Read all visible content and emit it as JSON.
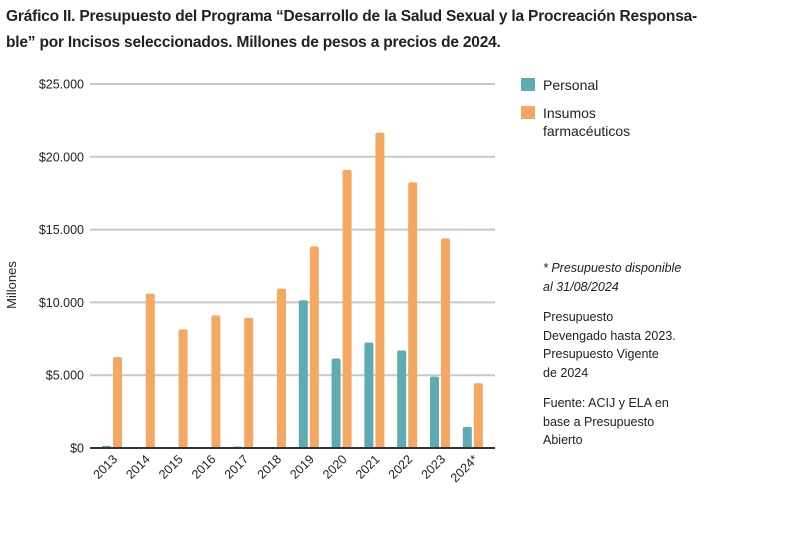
{
  "chart_data": {
    "type": "bar",
    "title": "Gráfico II. Presupuesto del Programa “Desarrollo de la Salud Sexual y la Procreación Responsa-",
    "title_line2": "ble” por Incisos seleccionados. Millones de pesos a precios de 2024.",
    "xlabel": "",
    "ylabel": "Millones",
    "categories": [
      "2013",
      "2014",
      "2015",
      "2016",
      "2017",
      "2018",
      "2019",
      "2020",
      "2021",
      "2022",
      "2023",
      "2024*"
    ],
    "series": [
      {
        "name": "Personal",
        "color": "#5fabb4",
        "values": [
          150,
          0,
          0,
          0,
          100,
          0,
          10150,
          6150,
          7250,
          6700,
          4900,
          1450
        ]
      },
      {
        "name": "Insumos farmacéuticos",
        "color": "#f4a862",
        "values": [
          6250,
          10600,
          8150,
          9100,
          8950,
          10950,
          13850,
          19100,
          21650,
          18250,
          14400,
          4450
        ]
      }
    ],
    "ylim": [
      0,
      25000
    ],
    "yticks": [
      0,
      5000,
      10000,
      15000,
      20000,
      25000
    ],
    "ytick_labels": [
      "$0",
      "$5.000",
      "$10.000",
      "$15.000",
      "$20.000",
      "$25.000"
    ],
    "grid": true,
    "legend_position": "right"
  },
  "legend": {
    "items": [
      {
        "label": "Personal",
        "color": "#5fabb4"
      },
      {
        "label": "Insumos\nfarmacéuticos",
        "color": "#f4a862"
      }
    ]
  },
  "notes": {
    "footnote": "* Presupuesto disponible\nal 31/08/2024",
    "description": "Presupuesto\nDevengado hasta 2023.\nPresupuesto Vigente\nde 2024",
    "source": "Fuente: ACIJ y ELA en\nbase a Presupuesto\nAbierto"
  }
}
